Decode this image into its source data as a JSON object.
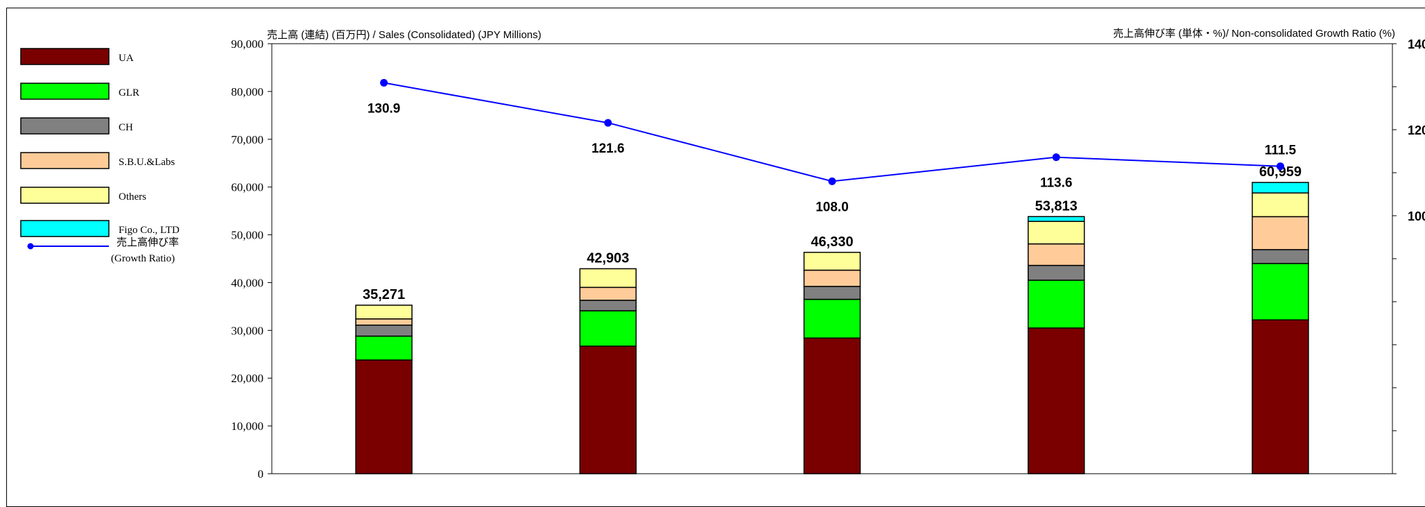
{
  "chart_data": {
    "type": "bar",
    "stacked": true,
    "categories": [
      "",
      "",
      "",
      "",
      ""
    ],
    "series": [
      {
        "name": "UA",
        "values": [
          23800,
          26700,
          28400,
          30500,
          32200
        ],
        "color": "#7a0000"
      },
      {
        "name": "GLR",
        "values": [
          5000,
          7400,
          8100,
          10000,
          11800
        ],
        "color": "#00ff00"
      },
      {
        "name": "CH",
        "values": [
          2300,
          2200,
          2700,
          3100,
          2900
        ],
        "color": "#808080"
      },
      {
        "name": "S.B.U.&Labs",
        "values": [
          1300,
          2700,
          3400,
          4500,
          6900
        ],
        "color": "#ffcc99"
      },
      {
        "name": "Others",
        "values": [
          2871,
          3903,
          3730,
          4713,
          4959
        ],
        "color": "#ffff99"
      },
      {
        "name": "Figo Co., LTD",
        "values": [
          0,
          0,
          0,
          1000,
          2200
        ],
        "color": "#00ffff"
      }
    ],
    "totals": [
      "35,271",
      "42,903",
      "46,330",
      "53,813",
      "60,959"
    ],
    "growth": {
      "name_lines": [
        "売上高伸び率",
        "(Growth Ratio)"
      ],
      "values": [
        130.9,
        121.6,
        108.0,
        113.6,
        111.5
      ],
      "labels": [
        "130.9",
        "121.6",
        "108.0",
        "113.6",
        "111.5"
      ],
      "color": "#0000ff"
    },
    "ylim": [
      0,
      90000
    ],
    "yticks": [
      "0",
      "10,000",
      "20,000",
      "30,000",
      "40,000",
      "50,000",
      "60,000",
      "70,000",
      "80,000",
      "90,000"
    ],
    "ylabel": "売上高 (連結) (百万円) / Sales (Consolidated) (JPY Millions)",
    "y2label": "売上高伸び率 (単体・%)/ Non-consolidated Growth Ratio (%)",
    "y2lim": [
      40,
      140
    ],
    "y2ticks": [
      "140",
      "120",
      "100"
    ],
    "legend_position": "left"
  }
}
